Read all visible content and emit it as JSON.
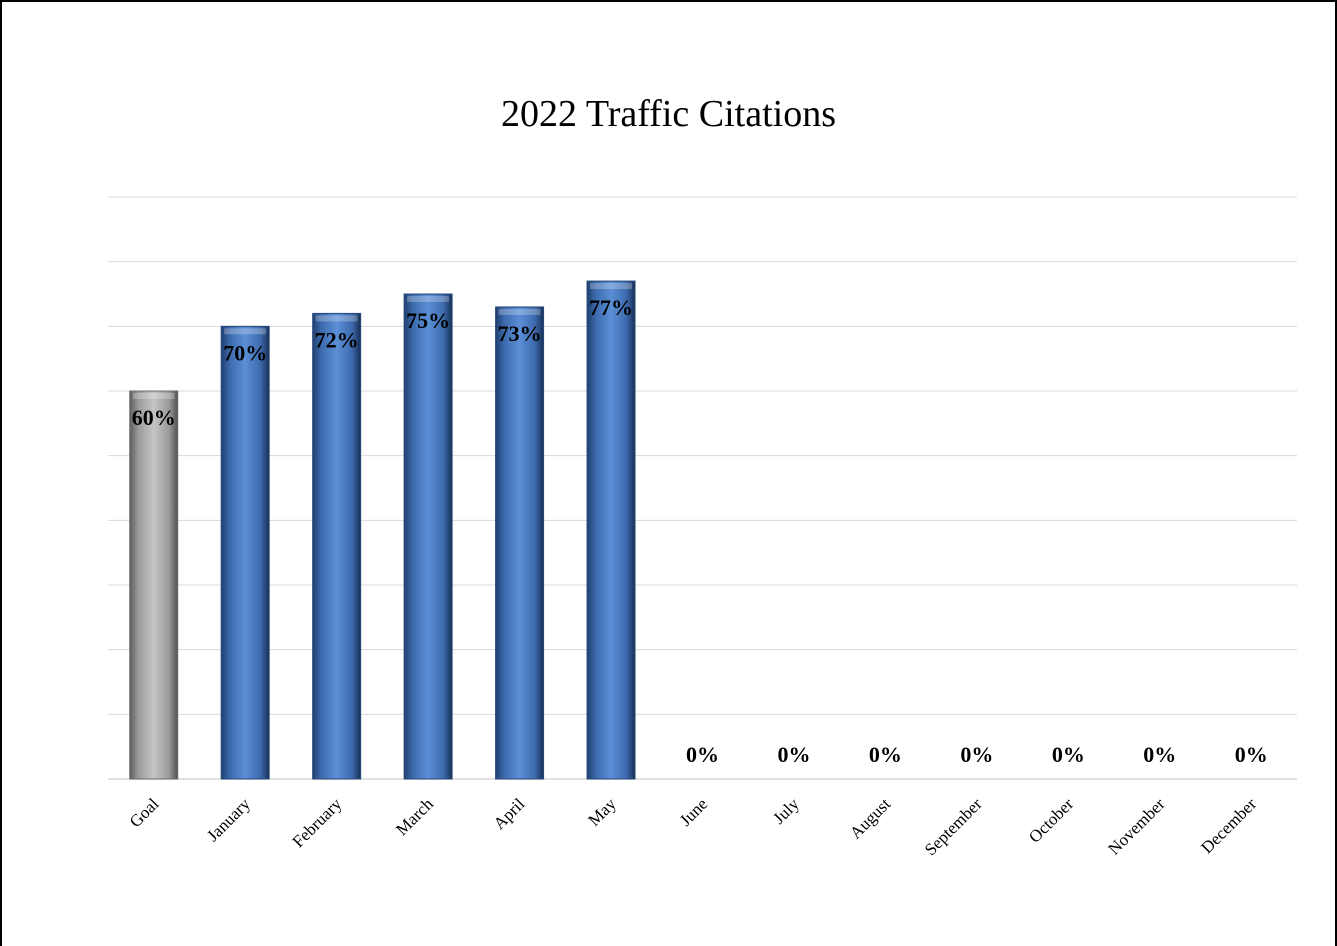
{
  "chart_data": {
    "type": "bar",
    "title": "2022 Traffic Citations",
    "xlabel": "",
    "ylabel": "",
    "categories": [
      "Goal",
      "January",
      "February",
      "March",
      "April",
      "May",
      "June",
      "July",
      "August",
      "September",
      "October",
      "November",
      "December"
    ],
    "values": [
      60,
      70,
      72,
      75,
      73,
      77,
      0,
      0,
      0,
      0,
      0,
      0,
      0
    ],
    "data_labels": [
      "60%",
      "70%",
      "72%",
      "75%",
      "73%",
      "77%",
      "0%",
      "0%",
      "0%",
      "0%",
      "0%",
      "0%",
      "0%"
    ],
    "ylim": [
      0,
      90
    ],
    "y_gridline_step": 10,
    "y_tick_labels_shown": false,
    "grid": true,
    "legend": "none",
    "colors": {
      "goal_bar": "#a6a6a6",
      "month_bar": "#4f81bd",
      "gridline": "#d9d9d9"
    }
  }
}
